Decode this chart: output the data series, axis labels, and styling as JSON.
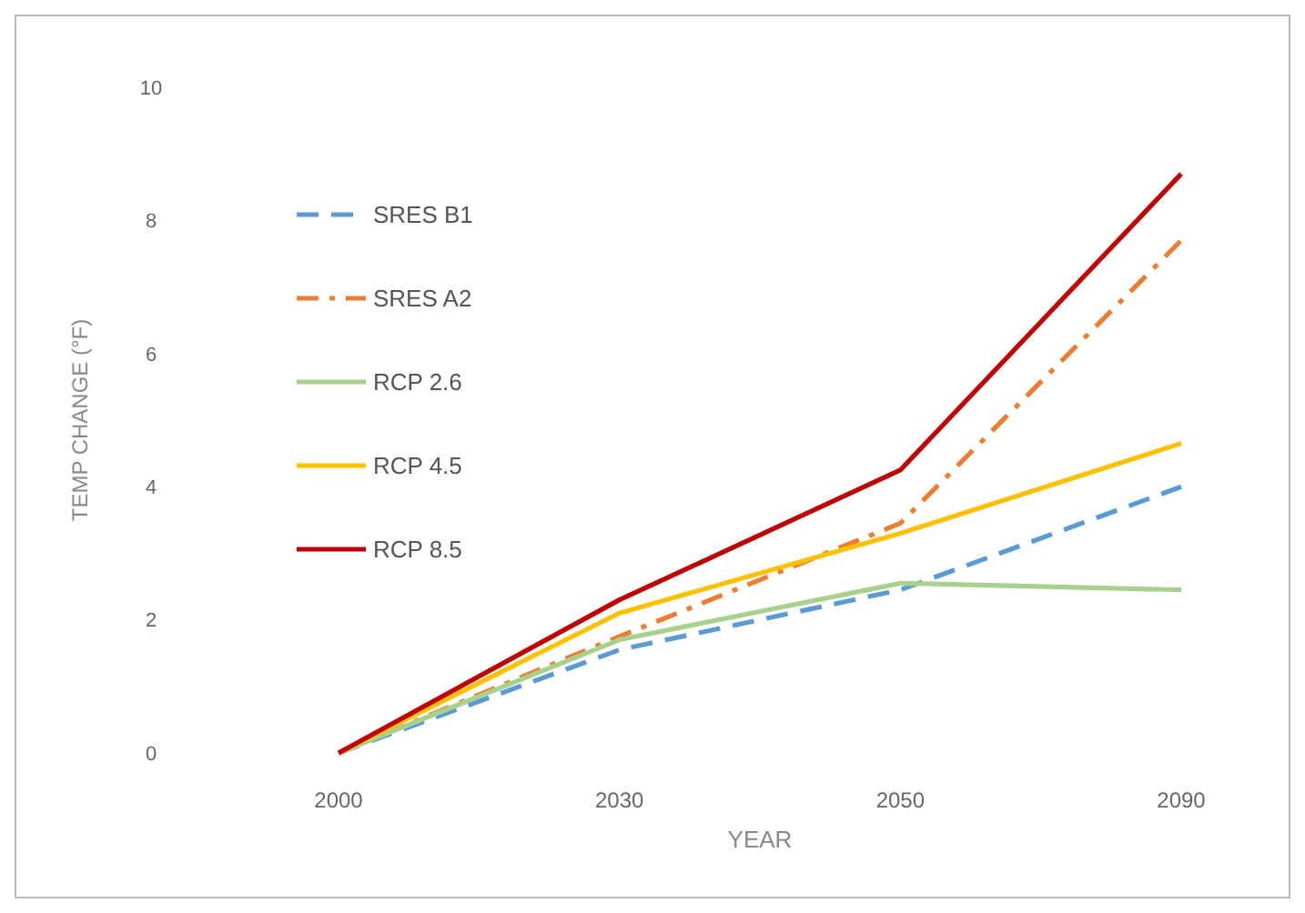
{
  "chart_data": {
    "type": "line",
    "xlabel": "YEAR",
    "ylabel": "TEMP CHANGE (°F)",
    "categories": [
      "2000",
      "2030",
      "2050",
      "2090"
    ],
    "ylim": [
      0,
      10
    ],
    "yticks": [
      0,
      2,
      4,
      6,
      8,
      10
    ],
    "grid": false,
    "legend": "top left",
    "marker": "none",
    "series": [
      {
        "name": "SRES B1",
        "color": "#5b9bd5",
        "line_style": "dashed",
        "values": [
          0,
          1.55,
          2.45,
          4.0
        ]
      },
      {
        "name": "SRES A2",
        "color": "#ed7d31",
        "line_style": "dashdot",
        "values": [
          0,
          1.75,
          3.45,
          7.7
        ]
      },
      {
        "name": "RCP 2.6",
        "color": "#a9d18e",
        "line_style": "solid",
        "values": [
          0,
          1.7,
          2.55,
          2.45
        ]
      },
      {
        "name": "RCP 4.5",
        "color": "#ffc000",
        "line_style": "solid",
        "values": [
          0,
          2.1,
          3.3,
          4.65
        ]
      },
      {
        "name": "RCP 8.5",
        "color": "#c00000",
        "line_style": "solid",
        "values": [
          0,
          2.3,
          4.25,
          8.7
        ]
      }
    ]
  }
}
